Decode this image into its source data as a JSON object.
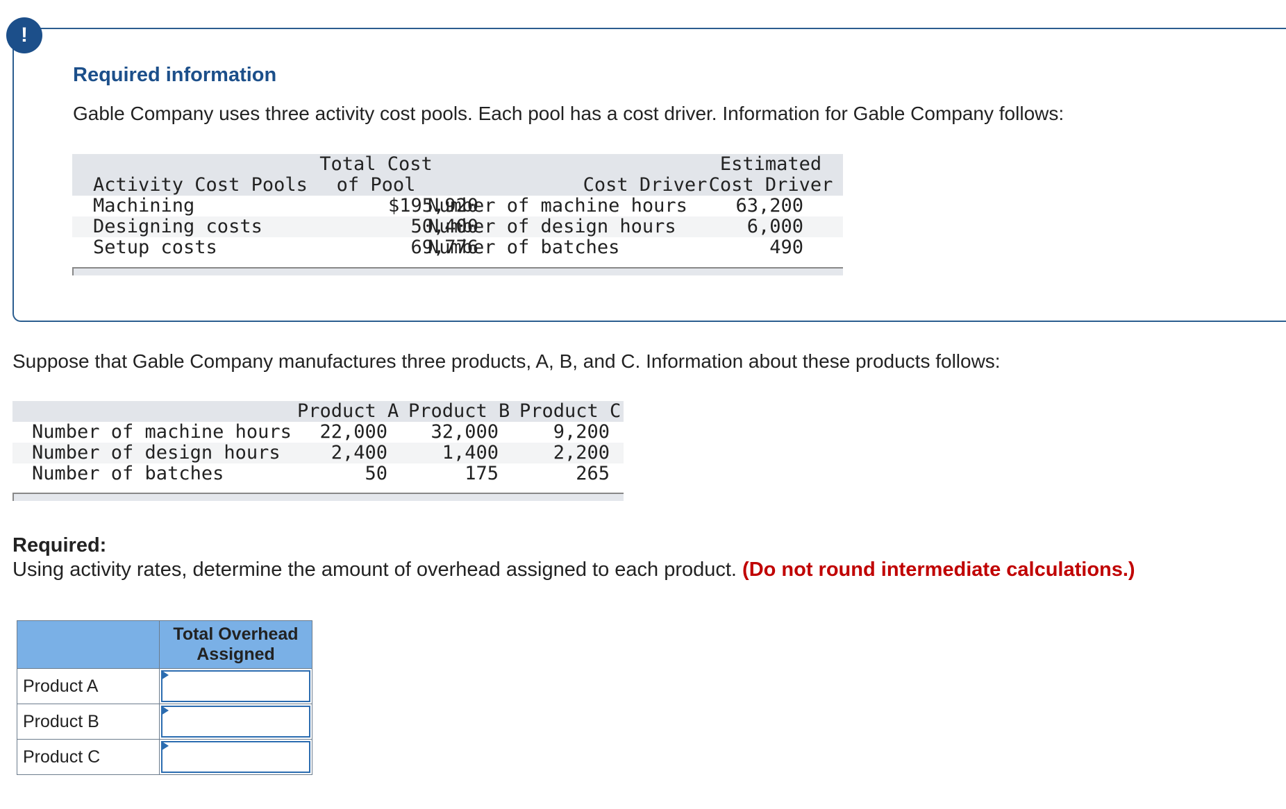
{
  "alert_icon_glyph": "!",
  "required_info": {
    "title": "Required information",
    "intro": "Gable Company uses three activity cost pools. Each pool has a cost driver. Information for Gable Company follows:"
  },
  "pools_table": {
    "headers": {
      "pool": "Activity Cost Pools",
      "total_cost_line1": "Total Cost",
      "total_cost_line2": "of Pool",
      "driver": "Cost Driver",
      "estimated_line1": "Estimated",
      "estimated_line2": "Cost Driver"
    },
    "rows": [
      {
        "pool": "Machining",
        "total_cost": "$195,920",
        "driver": "Number of machine hours",
        "estimated": "63,200"
      },
      {
        "pool": "Designing costs",
        "total_cost": "50,400",
        "driver": "Number of design hours",
        "estimated": "6,000"
      },
      {
        "pool": "Setup costs",
        "total_cost": "69,776",
        "driver": "Number of batches",
        "estimated": "490"
      }
    ]
  },
  "suppose_text": "Suppose that Gable Company manufactures three products, A, B, and C. Information about these products follows:",
  "products_table": {
    "headers": [
      "Product A",
      "Product B",
      "Product C"
    ],
    "rows": [
      {
        "label": "Number of machine hours",
        "values": [
          "22,000",
          "32,000",
          "9,200"
        ]
      },
      {
        "label": "Number of design hours",
        "values": [
          "2,400",
          "1,400",
          "2,200"
        ]
      },
      {
        "label": "Number of batches",
        "values": [
          "50",
          "175",
          "265"
        ]
      }
    ]
  },
  "required": {
    "label": "Required:",
    "text": "Using activity rates, determine the amount of overhead assigned to each product.",
    "warning": "(Do not round intermediate calculations.)"
  },
  "answer_table": {
    "header_line1": "Total Overhead",
    "header_line2": "Assigned",
    "rows": [
      {
        "label": "Product A",
        "value": ""
      },
      {
        "label": "Product B",
        "value": ""
      },
      {
        "label": "Product C",
        "value": ""
      }
    ]
  },
  "colors": {
    "brand_blue": "#1c4f8a",
    "warning_red": "#c00000",
    "answer_header_bg": "#7ab0e6"
  }
}
